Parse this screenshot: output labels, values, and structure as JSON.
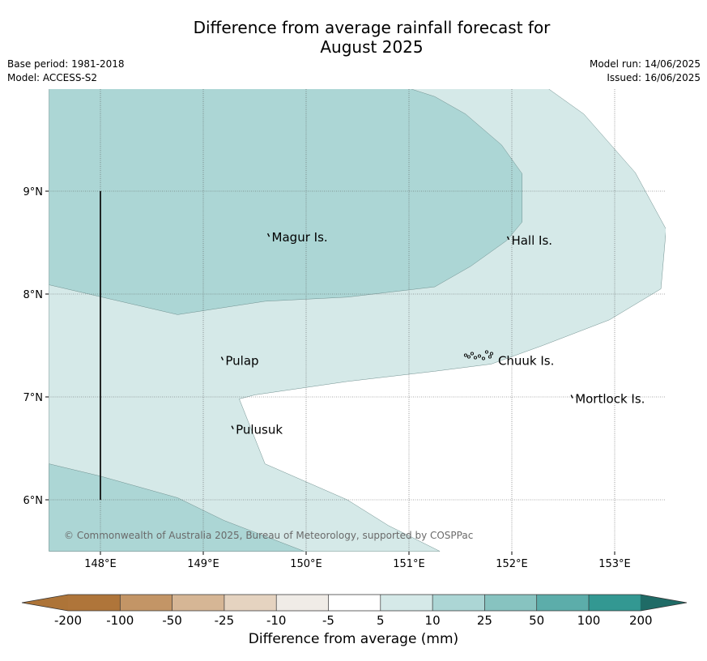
{
  "title": {
    "line1": "Difference from average rainfall forecast for",
    "line2": "August 2025"
  },
  "meta": {
    "base_period": "Base period: 1981-2018",
    "model": "Model: ACCESS-S2",
    "model_run": "Model run: 14/06/2025",
    "issued": "Issued: 16/06/2025"
  },
  "map": {
    "lon_range": [
      147.5,
      153.5
    ],
    "lat_range": [
      5.5,
      10.0
    ],
    "lon_ticks": [
      {
        "value": 148,
        "label": "148°E"
      },
      {
        "value": 149,
        "label": "149°E"
      },
      {
        "value": 150,
        "label": "150°E"
      },
      {
        "value": 151,
        "label": "151°E"
      },
      {
        "value": 152,
        "label": "152°E"
      },
      {
        "value": 153,
        "label": "153°E"
      }
    ],
    "lat_ticks": [
      {
        "value": 9,
        "label": "9°N"
      },
      {
        "value": 8,
        "label": "8°N"
      },
      {
        "value": 7,
        "label": "7°N"
      },
      {
        "value": 6,
        "label": "6°N"
      }
    ],
    "grid": true,
    "places": [
      {
        "name": "Magur Is.",
        "lon": 149.65,
        "lat": 8.55
      },
      {
        "name": "Hall Is.",
        "lon": 151.98,
        "lat": 8.52
      },
      {
        "name": "Pulap",
        "lon": 149.2,
        "lat": 7.35
      },
      {
        "name": "Chuuk Is.",
        "lon": 151.85,
        "lat": 7.35
      },
      {
        "name": "Mortlock Is.",
        "lon": 152.6,
        "lat": 6.98
      },
      {
        "name": "Pulusuk",
        "lon": 149.3,
        "lat": 6.68
      }
    ],
    "boundary_line": {
      "lon": 148.0,
      "lat_from": 6.0,
      "lat_to": 9.0
    },
    "regions": [
      {
        "category": "5 to 10",
        "color": "#d5e9e8",
        "points": [
          [
            147.5,
            8.09
          ],
          [
            147.5,
            5.5
          ],
          [
            150.0,
            5.5
          ],
          [
            151.3,
            5.5
          ],
          [
            150.8,
            5.75
          ],
          [
            150.4,
            6.0
          ],
          [
            149.6,
            6.35
          ],
          [
            149.35,
            6.98
          ],
          [
            149.5,
            7.02
          ],
          [
            150.4,
            7.15
          ],
          [
            151.25,
            7.25
          ],
          [
            151.8,
            7.32
          ],
          [
            152.3,
            7.5
          ],
          [
            152.95,
            7.75
          ],
          [
            153.45,
            8.05
          ],
          [
            153.5,
            8.63
          ],
          [
            153.2,
            9.18
          ],
          [
            152.7,
            9.75
          ],
          [
            152.35,
            10.0
          ],
          [
            150.9,
            10.0
          ]
        ]
      },
      {
        "category": "10 to 25",
        "color": "#acd6d5",
        "points": [
          [
            147.5,
            10.0
          ],
          [
            151.0,
            10.0
          ],
          [
            151.25,
            9.92
          ],
          [
            151.55,
            9.75
          ],
          [
            151.9,
            9.45
          ],
          [
            152.1,
            9.17
          ],
          [
            152.1,
            8.7
          ],
          [
            151.95,
            8.52
          ],
          [
            151.6,
            8.27
          ],
          [
            151.25,
            8.07
          ],
          [
            150.4,
            7.97
          ],
          [
            149.6,
            7.93
          ],
          [
            148.75,
            7.8
          ],
          [
            147.5,
            8.09
          ]
        ]
      },
      {
        "category": "10 to 25",
        "color": "#acd6d5",
        "points": [
          [
            147.5,
            6.35
          ],
          [
            147.5,
            5.5
          ],
          [
            149.98,
            5.5
          ],
          [
            149.2,
            5.8
          ],
          [
            148.75,
            6.02
          ],
          [
            148.0,
            6.23
          ],
          [
            147.5,
            6.35
          ]
        ]
      }
    ]
  },
  "copyright": "© Commonwealth of Australia 2025, Bureau of Meteorology, supported by COSPPac",
  "legend": {
    "title": "Difference from average (mm)",
    "tick_labels": [
      "-200",
      "-100",
      "-50",
      "-25",
      "-10",
      "-5",
      "5",
      "10",
      "25",
      "50",
      "100",
      "200"
    ],
    "colors": [
      "#ad7438",
      "#af753a",
      "#c39566",
      "#d6b695",
      "#e5d3c0",
      "#f0ece7",
      "#ffffff",
      "#d5e9e8",
      "#acd6d5",
      "#87c3c0",
      "#5cadaa",
      "#339892",
      "#1f6b66"
    ]
  }
}
